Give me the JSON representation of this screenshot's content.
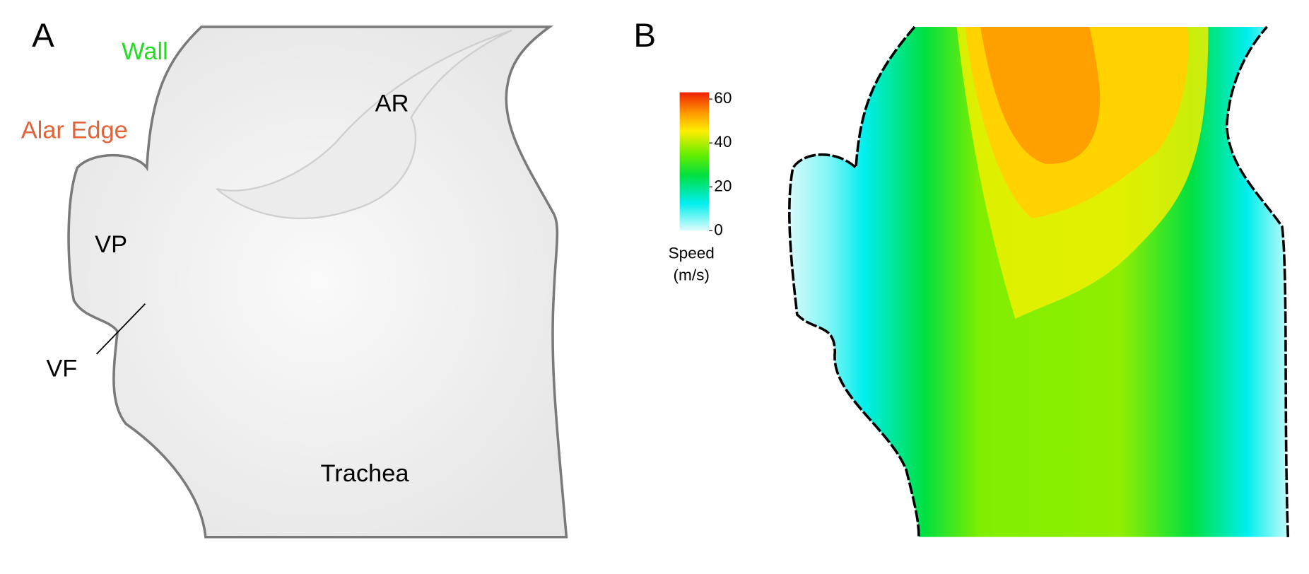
{
  "panels": [
    {
      "label": "A",
      "annotations": {
        "wall": "Wall",
        "alar_edge": "Alar Edge",
        "ar": "AR",
        "vp": "VP",
        "vf": "VF",
        "trachea": "Trachea"
      }
    },
    {
      "label": "B",
      "colorbar": {
        "title": "Speed",
        "unit": "(m/s)",
        "lim": [
          0,
          60
        ],
        "ticks": [
          0,
          20,
          40,
          60
        ]
      }
    }
  ]
}
